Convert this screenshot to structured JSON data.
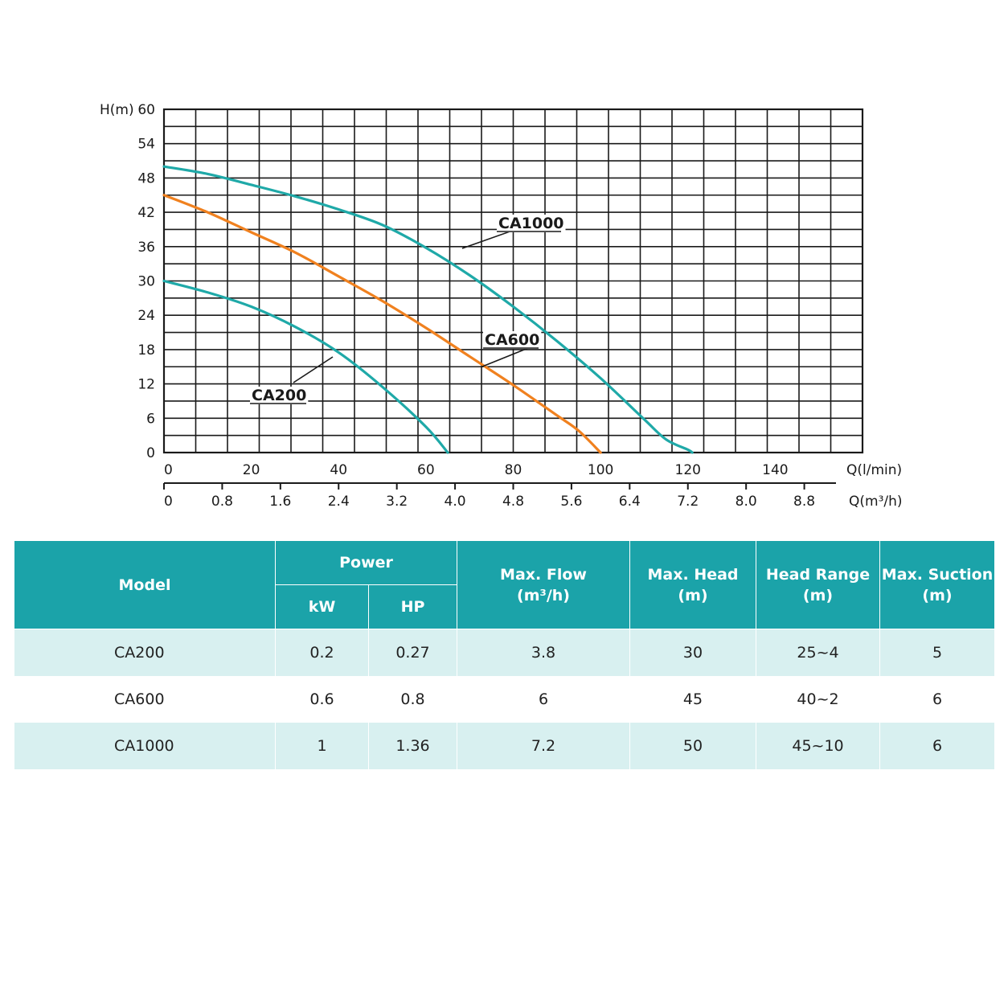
{
  "chart_data": {
    "type": "line",
    "ylabel": "H(m)",
    "xlabel": "Q(l/min)",
    "x2label": "Q(m³/h)",
    "ylim": [
      0,
      60
    ],
    "xlim": [
      0,
      160
    ],
    "x2lim": [
      0,
      9.6
    ],
    "yticks": [
      "0",
      "6",
      "12",
      "18",
      "24",
      "30",
      "36",
      "42",
      "48",
      "54",
      "60"
    ],
    "xticks": [
      "0",
      "20",
      "40",
      "60",
      "80",
      "100",
      "120",
      "140"
    ],
    "x2ticks": [
      "0",
      "0.8",
      "1.6",
      "2.4",
      "3.2",
      "4.0",
      "4.8",
      "5.6",
      "6.4",
      "7.2",
      "8.0",
      "8.8"
    ],
    "grid": true,
    "series": [
      {
        "name": "CA1000",
        "color": "#1fa9a8",
        "x": [
          0,
          10,
          20,
          30,
          40,
          50,
          60,
          70,
          80,
          90,
          100,
          110,
          115,
          120,
          121
        ],
        "y": [
          50,
          48.7,
          46.8,
          44.8,
          42.5,
          39.8,
          35.8,
          31,
          25.5,
          19.5,
          13,
          5.8,
          2.3,
          0.5,
          0
        ]
      },
      {
        "name": "CA600",
        "color": "#f0811f",
        "x": [
          0,
          10,
          20,
          30,
          40,
          50,
          60,
          70,
          80,
          90,
          95,
          100
        ],
        "y": [
          45,
          42,
          38.5,
          35,
          30.8,
          26.5,
          21.8,
          16.8,
          11.8,
          6.5,
          3.8,
          0
        ]
      },
      {
        "name": "CA200",
        "color": "#1fa9a8",
        "x": [
          0,
          10,
          20,
          30,
          40,
          50,
          60,
          65
        ],
        "y": [
          30,
          28,
          25.5,
          22,
          17.5,
          11.5,
          4.5,
          0
        ]
      }
    ]
  },
  "table": {
    "headers": {
      "model": "Model",
      "power": "Power",
      "kw": "kW",
      "hp": "HP",
      "max_flow": "Max. Flow",
      "max_flow_unit": "(m³/h)",
      "max_head": "Max. Head",
      "max_head_unit": "(m)",
      "head_range": "Head Range",
      "head_range_unit": "(m)",
      "max_suction": "Max. Suction",
      "max_suction_unit": "(m)"
    },
    "rows": [
      {
        "model": "CA200",
        "kw": "0.2",
        "hp": "0.27",
        "max_flow": "3.8",
        "max_head": "30",
        "head_range": "25~4",
        "max_suction": "5"
      },
      {
        "model": "CA600",
        "kw": "0.6",
        "hp": "0.8",
        "max_flow": "6",
        "max_head": "45",
        "head_range": "40~2",
        "max_suction": "6"
      },
      {
        "model": "CA1000",
        "kw": "1",
        "hp": "1.36",
        "max_flow": "7.2",
        "max_head": "50",
        "head_range": "45~10",
        "max_suction": "6"
      }
    ],
    "colors": {
      "header_bg": "#1ba3a9",
      "row_alt_bg": "#d8f0f0"
    }
  }
}
